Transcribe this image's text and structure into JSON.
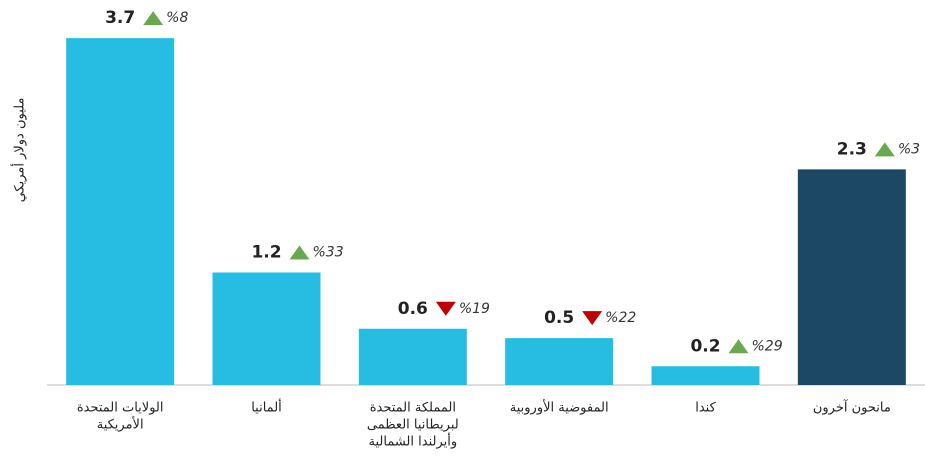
{
  "chart_data": {
    "type": "bar",
    "y_label": "مليون دولار أمريكي",
    "categories": [
      [
        "الولايات المتحدة",
        "الأمريكية"
      ],
      [
        "ألمانيا"
      ],
      [
        "المملكة المتحدة",
        "لبريطانيا العظمى",
        "وأيرلندا الشمالية"
      ],
      [
        "المفوضية الأوروبية"
      ],
      [
        "كندا"
      ],
      [
        "مانحون آخرون"
      ]
    ],
    "values": [
      3.7,
      1.2,
      0.6,
      0.5,
      0.2,
      2.3
    ],
    "colors": [
      "#27bde2",
      "#27bde2",
      "#27bde2",
      "#27bde2",
      "#27bde2",
      "#1c4866"
    ],
    "changes": {
      "values": [
        8,
        33,
        -19,
        -22,
        29,
        3
      ],
      "value_labels": [
        "%8",
        "%33",
        "%19",
        "%22",
        "%29",
        "%3"
      ],
      "up_color": "#6aa84f",
      "down_color": "#c00000"
    },
    "ylim": [
      0,
      4
    ]
  }
}
